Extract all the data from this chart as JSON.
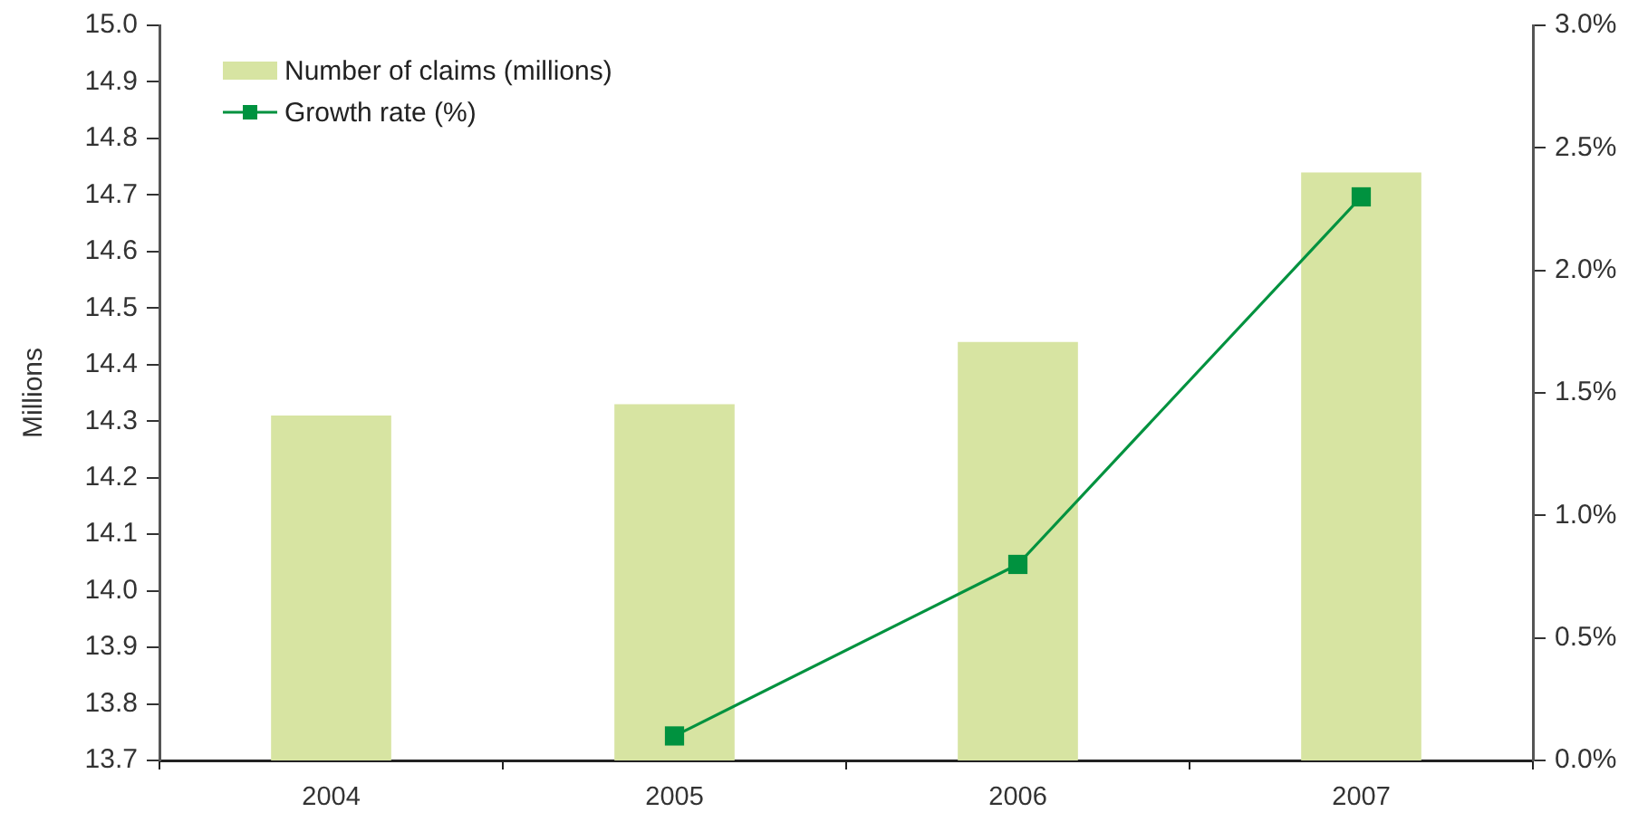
{
  "chart_data": {
    "type": "bar",
    "categories": [
      "2004",
      "2005",
      "2006",
      "2007"
    ],
    "ylabel": "Millions",
    "ylim": [
      13.7,
      15.0
    ],
    "yticks": [
      13.7,
      13.8,
      13.9,
      {
        "value": 14.0,
        "label": "14.0"
      },
      14.1,
      14.2,
      14.3,
      14.4,
      14.5,
      14.6,
      14.7,
      14.8,
      14.9,
      {
        "value": 15.0,
        "label": "15.0"
      }
    ],
    "y2lim": [
      0,
      3
    ],
    "y2ticks": [
      {
        "value": 0,
        "label": "0.0%"
      },
      {
        "value": 0.5,
        "label": "0.5%"
      },
      {
        "value": 1,
        "label": "1.0%"
      },
      {
        "value": 1.5,
        "label": "1.5%"
      },
      {
        "value": 2,
        "label": "2.0%"
      },
      {
        "value": 2.5,
        "label": "2.5%"
      },
      {
        "value": 3,
        "label": "3.0%"
      }
    ],
    "series": [
      {
        "name": "Number of claims (millions)",
        "color": "#d7e4a2",
        "values": [
          14.31,
          14.33,
          14.44,
          14.74
        ]
      },
      {
        "name": "Growth rate (%)",
        "type": "line",
        "axis": "y2",
        "color": "#00923f",
        "values": [
          null,
          0.1,
          0.8,
          2.3
        ]
      }
    ],
    "marker": "square",
    "legend": "top left"
  }
}
